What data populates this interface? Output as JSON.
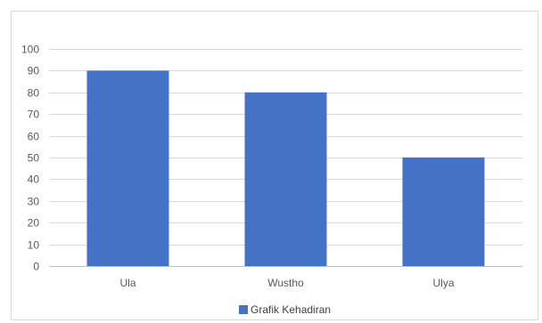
{
  "chart_data": {
    "type": "bar",
    "categories": [
      "Ula",
      "Wustho",
      "Ulya"
    ],
    "series": [
      {
        "name": "Grafik Kehadiran",
        "values": [
          90,
          80,
          50
        ],
        "color": "#4472C4"
      }
    ],
    "ylim": [
      0,
      100
    ],
    "ytick_step": 10,
    "grid": true,
    "legend": "bottom",
    "colors": {
      "grid": "#d9d9d9",
      "axis": "#bfbfbf",
      "text": "#595959"
    }
  }
}
